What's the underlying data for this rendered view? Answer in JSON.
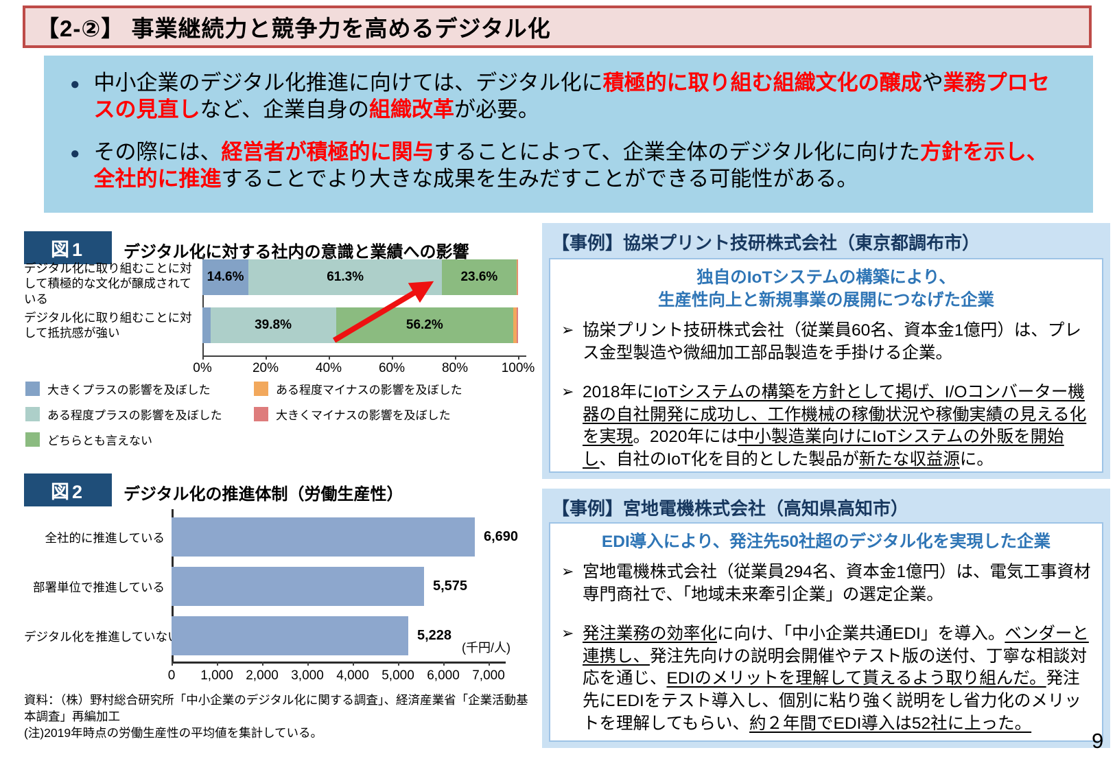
{
  "page": {
    "number": "9"
  },
  "title_bar": {
    "text": "【2-②】 事業継続力と競争力を高めるデジタル化"
  },
  "summary_box": {
    "bullets": [
      {
        "segments": [
          {
            "t": "中小企業のデジタル化推進に向けては、デジタル化に"
          },
          {
            "t": "積極的に取り組む組織文化の醸成",
            "red": true
          },
          {
            "t": "や"
          },
          {
            "t": "業務プロセスの見直し",
            "red": true
          },
          {
            "t": "など、企業自身の"
          },
          {
            "t": "組織改革",
            "red": true
          },
          {
            "t": "が必要。"
          }
        ]
      },
      {
        "segments": [
          {
            "t": "その際には、"
          },
          {
            "t": "経営者が積極的に関与",
            "red": true
          },
          {
            "t": "することによって、企業全体のデジタル化に向けた"
          },
          {
            "t": "方針を示し、全社的に推進",
            "red": true
          },
          {
            "t": "することでより大きな成果を生みだすことができる可能性がある。"
          }
        ]
      }
    ]
  },
  "figure1": {
    "tag": "図1",
    "title": "デジタル化に対する社内の意識と業績への影響"
  },
  "figure2": {
    "tag": "図2",
    "title": "デジタル化の推進体制（労働生産性）"
  },
  "chart_data": [
    {
      "id": "fig1",
      "type": "bar",
      "subtype": "horizontal-stacked-100pct",
      "title": "デジタル化に対する社内の意識と業績への影響",
      "categories": [
        "デジタル化に取り組むことに対して積極的な文化が醸成されている",
        "デジタル化に取り組むことに対して抵抗感が強い"
      ],
      "series": [
        {
          "name": "大きくプラスの影響を及ぼした",
          "color": "#83A2C6",
          "values": [
            14.6,
            2.5
          ]
        },
        {
          "name": "ある程度プラスの影響を及ぼした",
          "color": "#ADCFC9",
          "values": [
            61.3,
            39.8
          ]
        },
        {
          "name": "どちらとも言えない",
          "color": "#8BBB80",
          "values": [
            23.6,
            56.2
          ]
        },
        {
          "name": "ある程度マイナスの影響を及ぼした",
          "color": "#F2A85C",
          "values": [
            0.3,
            1.0
          ]
        },
        {
          "name": "大きくマイナスの影響を及ぼした",
          "color": "#DE7C7C",
          "values": [
            0.2,
            0.5
          ]
        }
      ],
      "data_labels": [
        [
          "14.6%",
          "61.3%",
          "23.6%",
          "",
          ""
        ],
        [
          "",
          "39.8%",
          "56.2%",
          "",
          ""
        ]
      ],
      "x_ticks": [
        "0%",
        "20%",
        "40%",
        "60%",
        "80%",
        "100%"
      ],
      "xlim": [
        0,
        100
      ],
      "legend_position": "bottom",
      "annotation": "red upward arrow from lower bar to 23.6% segment of upper bar"
    },
    {
      "id": "fig2",
      "type": "bar",
      "subtype": "horizontal",
      "title": "デジタル化の推進体制（労働生産性）",
      "categories": [
        "全社的に推進している",
        "部署単位で推進している",
        "デジタル化を推進していない"
      ],
      "values": [
        6690,
        5575,
        5228
      ],
      "data_labels": [
        "6,690",
        "5,575",
        "5,228"
      ],
      "x_ticks": [
        "0",
        "1,000",
        "2,000",
        "3,000",
        "4,000",
        "5,000",
        "6,000",
        "7,000"
      ],
      "xlim": [
        0,
        7380
      ],
      "unit_label": "(千円/人)",
      "bar_color": "#8DA7CD"
    }
  ],
  "arrow_color": "#EE1111",
  "source_note": {
    "line1": "資料：（株）野村総合研究所「中小企業のデジタル化に関する調査」、経済産業省「企業活動基本調査」再編加工",
    "line2": "(注)2019年時点の労働生産性の平均値を集計している。"
  },
  "case1": {
    "header": "【事例】協栄プリント技研株式会社（東京都調布市）",
    "subtitle_lines": [
      "独自のIoTシステムの構築により、",
      "生産性向上と新規事業の展開につなげた企業"
    ],
    "bullet_marker": "➢",
    "bullets": [
      {
        "segments": [
          {
            "t": "協栄プリント技研株式会社（従業員60名、資本金1億円）は、プレス金型製造や微細加工部品製造を手掛ける企業。"
          }
        ]
      },
      {
        "segments": [
          {
            "t": "2018年に"
          },
          {
            "t": "IoTシステムの構築を方針として掲げ、I/Oコンバーター機器の自社開発に成功し、工作機械の稼働状況や稼働実績の見える化を実現",
            "u": true
          },
          {
            "t": "。2020年には"
          },
          {
            "t": "中小製造業向けにIoTシステムの外販を開始し",
            "u": true
          },
          {
            "t": "、自社のIoT化を目的とした製品が"
          },
          {
            "t": "新たな収益源",
            "u": true
          },
          {
            "t": "に。"
          }
        ]
      }
    ]
  },
  "case2": {
    "header": "【事例】宮地電機株式会社（高知県高知市）",
    "subtitle_lines": [
      "EDI導入により、発注先50社超のデジタル化を実現した企業"
    ],
    "bullet_marker": "➢",
    "bullets": [
      {
        "segments": [
          {
            "t": "宮地電機株式会社（従業員294名、資本金1億円）は、電気工事資材専門商社で、「地域未来牽引企業」の選定企業。"
          }
        ]
      },
      {
        "segments": [
          {
            "t": "発注業務の効率化",
            "u": true
          },
          {
            "t": "に向け、「中小企業共通EDI」を導入。"
          },
          {
            "t": "ベンダーと連携し、",
            "u": true
          },
          {
            "t": "発注先向けの説明会開催やテスト版の送付、丁寧な相談対応を通じ、"
          },
          {
            "t": "EDIのメリットを理解して貰えるよう取り組んだ。",
            "u": true
          },
          {
            "t": "発注先にEDIをテスト導入し、個別に粘り強く説明をし省力化のメリットを理解してもらい、"
          },
          {
            "t": "約２年間でEDI導入は52社に上った。",
            "u": true
          }
        ]
      }
    ]
  }
}
